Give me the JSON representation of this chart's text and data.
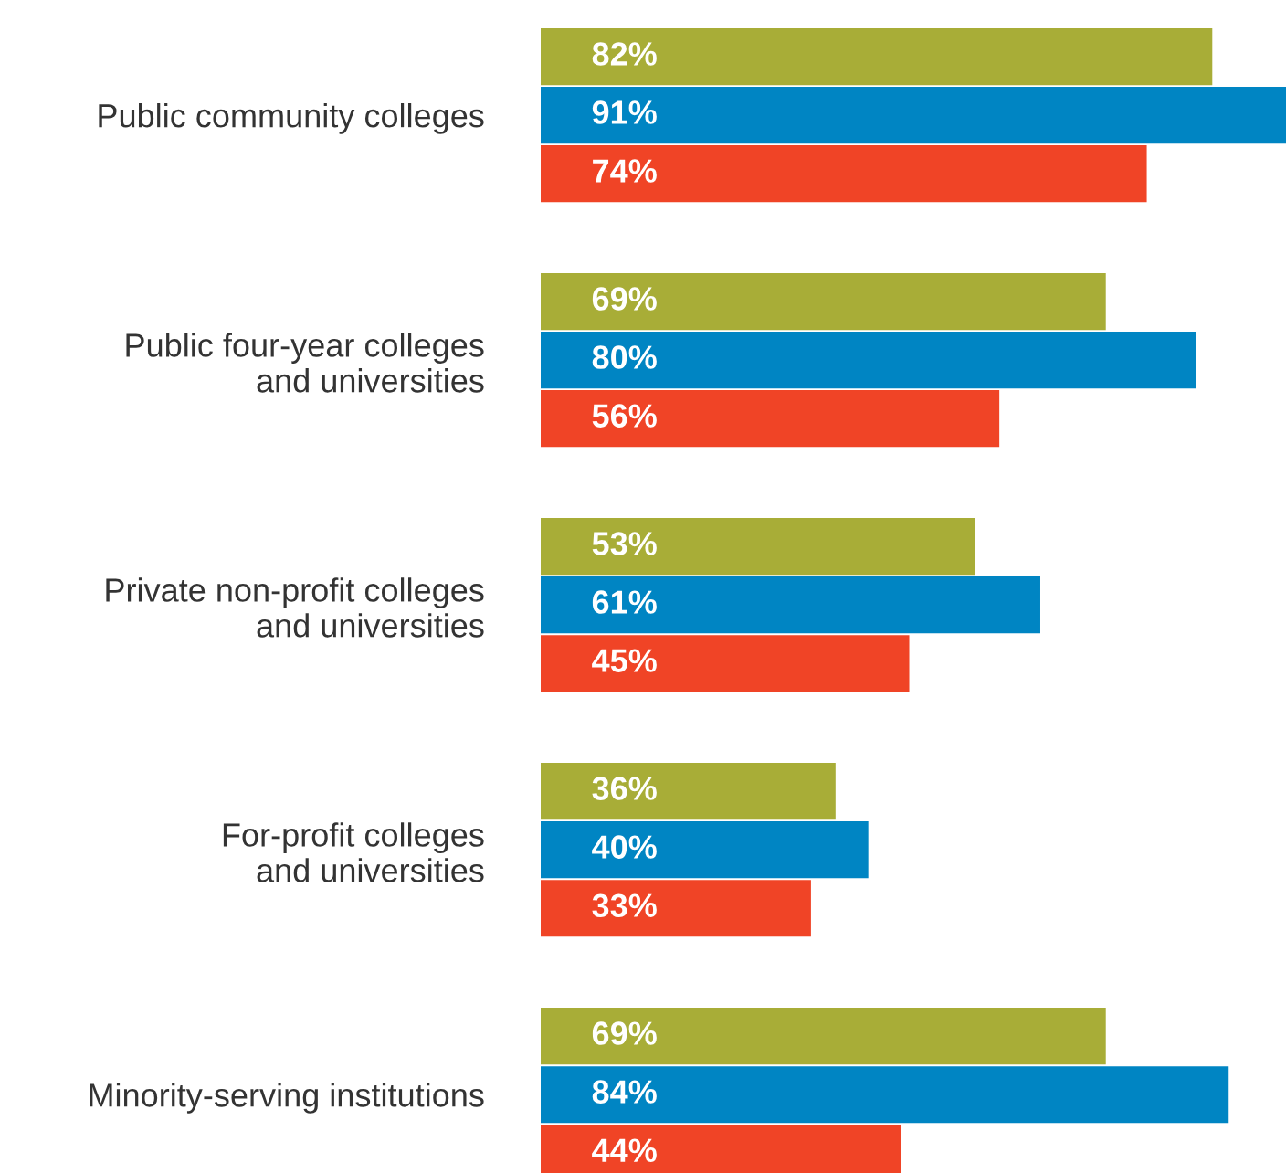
{
  "chart_data": {
    "type": "bar",
    "orientation": "horizontal",
    "categories": [
      "Public community colleges",
      "Public four-year colleges\nand universities",
      "Private non-profit colleges\nand universities",
      "For-profit colleges\nand universities",
      "Minority-serving institutions"
    ],
    "series": [
      {
        "color": "#a8ad37",
        "values": [
          82,
          69,
          53,
          36,
          69
        ],
        "value_labels": [
          "82%",
          "69%",
          "53%",
          "36%",
          "69%"
        ]
      },
      {
        "color": "#0085c3",
        "values": [
          91,
          80,
          61,
          40,
          84
        ],
        "value_labels": [
          "91%",
          "80%",
          "61%",
          "40%",
          "84%"
        ]
      },
      {
        "color": "#f04426",
        "values": [
          74,
          56,
          45,
          33,
          44
        ],
        "value_labels": [
          "74%",
          "56%",
          "45%",
          "33%",
          "44%"
        ]
      }
    ],
    "grid": false,
    "legend": false,
    "tick_labels": "y"
  }
}
